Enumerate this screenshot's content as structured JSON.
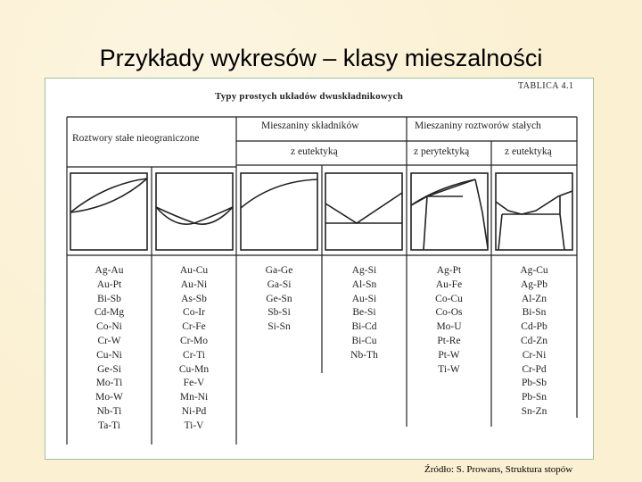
{
  "slide": {
    "title": "Przykłady wykresów – klasy mieszalności",
    "source": "Źródło: S. Prowans, Struktura stopów"
  },
  "figure": {
    "title": "Typy prostych układów dwuskładnikowych",
    "table_number": "TABLICA 4.1",
    "headers": {
      "solid_solutions": "Roztwory stałe nieograniczone",
      "component_mixtures": "Mieszaniny składników",
      "solution_mixtures": "Mieszaniny roztworów stałych",
      "eutectic_1": "z eutektyką",
      "peritectic": "z perytektyką",
      "eutectic_2": "z eutektyką"
    },
    "columns": [
      [
        "Ag-Au",
        "Au-Pt",
        "Bi-Sb",
        "Cd-Mg",
        "Co-Ni",
        "Cr-W",
        "Cu-Ni",
        "Ge-Si",
        "Mo-Ti",
        "Mo-W",
        "Nb-Ti",
        "Ta-Ti"
      ],
      [
        "Au-Cu",
        "Au-Ni",
        "As-Sb",
        "Co-Ir",
        "Cr-Fe",
        "Cr-Mo",
        "Cr-Ti",
        "Cu-Mn",
        "Fe-V",
        "Mn-Ni",
        "Ni-Pd",
        "Ti-V"
      ],
      [
        "Ga-Ge",
        "Ga-Si",
        "Ge-Sn",
        "Sb-Si",
        "Si-Sn"
      ],
      [
        "Ag-Si",
        "Al-Sn",
        "Au-Si",
        "Be-Si",
        "Bi-Cd",
        "Bi-Cu",
        "Nb-Th"
      ],
      [
        "Ag-Pt",
        "Au-Fe",
        "Co-Cu",
        "Co-Os",
        "Mo-U",
        "Pt-Re",
        "Pt-W",
        "Ti-W"
      ],
      [
        "Ag-Cu",
        "Ag-Pb",
        "Al-Zn",
        "Bi-Sn",
        "Cd-Pb",
        "Cd-Zn",
        "Cr-Ni",
        "Cr-Pd",
        "Pb-Sb",
        "Pb-Sn",
        "Sn-Zn"
      ]
    ]
  }
}
